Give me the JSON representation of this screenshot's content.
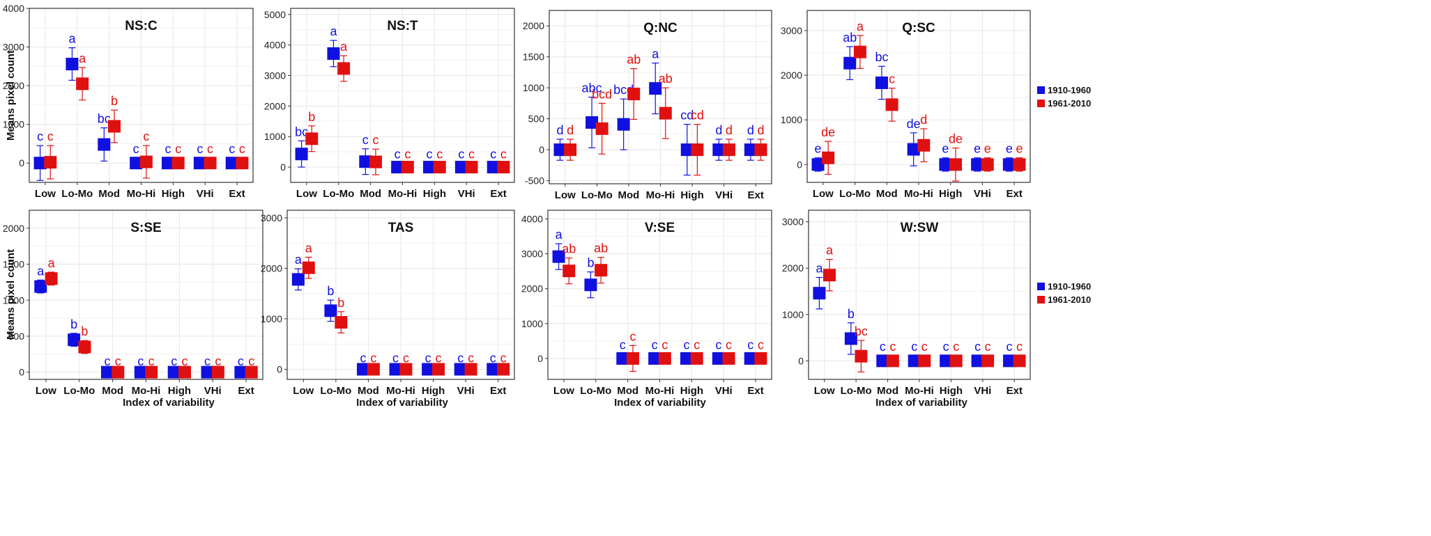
{
  "legend": [
    "1910-1960",
    "1961-2010"
  ],
  "colors": {
    "series1": "#1010e0",
    "series2": "#e01010",
    "grid": "#e6e6e6",
    "frame": "#333333"
  },
  "ylabel": "Means pixel count",
  "xlabel": "Index of variability",
  "chart_data": [
    {
      "type": "scatter",
      "title": "NS:C",
      "categories": [
        "Low",
        "Lo-Mo",
        "Mod",
        "Mo-Hi",
        "High",
        "VHi",
        "Ext"
      ],
      "ylim": [
        -500,
        4000
      ],
      "yticks": [
        0,
        1000,
        2000,
        3000,
        4000
      ],
      "series": [
        {
          "name": "1910-1960",
          "values": [
            0,
            2560,
            480,
            0,
            0,
            0,
            0
          ],
          "err": [
            450,
            420,
            430,
            130,
            130,
            130,
            130
          ],
          "letters": [
            "c",
            "a",
            "bc",
            "c",
            "c",
            "c",
            "c"
          ]
        },
        {
          "name": "1961-2010",
          "values": [
            20,
            2050,
            950,
            30,
            0,
            0,
            0
          ],
          "err": [
            430,
            420,
            420,
            420,
            130,
            130,
            130
          ],
          "letters": [
            "c",
            "a",
            "b",
            "c",
            "c",
            "c",
            "c"
          ]
        }
      ]
    },
    {
      "type": "scatter",
      "title": "NS:T",
      "categories": [
        "Low",
        "Lo-Mo",
        "Mod",
        "Mo-Hi",
        "High",
        "VHi",
        "Ext"
      ],
      "ylim": [
        -500,
        5200
      ],
      "yticks": [
        0,
        1000,
        2000,
        3000,
        4000,
        5000
      ],
      "series": [
        {
          "name": "1910-1960",
          "values": [
            430,
            3720,
            180,
            0,
            0,
            0,
            0
          ],
          "err": [
            430,
            430,
            420,
            130,
            130,
            130,
            130
          ],
          "letters": [
            "bc",
            "a",
            "c",
            "c",
            "c",
            "c",
            "c"
          ]
        },
        {
          "name": "1961-2010",
          "values": [
            930,
            3230,
            170,
            0,
            0,
            0,
            0
          ],
          "err": [
            420,
            420,
            420,
            130,
            130,
            130,
            130
          ],
          "letters": [
            "b",
            "a",
            "c",
            "c",
            "c",
            "c",
            "c"
          ]
        }
      ]
    },
    {
      "type": "scatter",
      "title": "Q:NC",
      "categories": [
        "Low",
        "Lo-Mo",
        "Mod",
        "Mo-Hi",
        "High",
        "VHi",
        "Ext"
      ],
      "ylim": [
        -550,
        2250
      ],
      "yticks": [
        -500,
        0,
        500,
        1000,
        1500,
        2000
      ],
      "series": [
        {
          "name": "1910-1960",
          "values": [
            0,
            440,
            410,
            990,
            0,
            0,
            0
          ],
          "err": [
            170,
            410,
            410,
            410,
            410,
            170,
            170
          ],
          "letters": [
            "d",
            "abc",
            "bcd",
            "a",
            "cd",
            "d",
            "d"
          ]
        },
        {
          "name": "1961-2010",
          "values": [
            0,
            340,
            900,
            590,
            0,
            0,
            0
          ],
          "err": [
            170,
            410,
            410,
            410,
            410,
            170,
            170
          ],
          "letters": [
            "d",
            "bcd",
            "ab",
            "ab",
            "cd",
            "d",
            "d"
          ]
        }
      ]
    },
    {
      "type": "scatter",
      "title": "Q:SC",
      "categories": [
        "Low",
        "Lo-Mo",
        "Mod",
        "Mo-Hi",
        "High",
        "VHi",
        "Ext"
      ],
      "ylim": [
        -400,
        3450
      ],
      "yticks": [
        0,
        1000,
        2000,
        3000
      ],
      "series": [
        {
          "name": "1910-1960",
          "values": [
            0,
            2270,
            1830,
            340,
            0,
            0,
            0
          ],
          "err": [
            150,
            370,
            370,
            370,
            150,
            150,
            150
          ],
          "letters": [
            "e",
            "ab",
            "bc",
            "de",
            "e",
            "e",
            "e"
          ]
        },
        {
          "name": "1961-2010",
          "values": [
            150,
            2520,
            1340,
            430,
            0,
            0,
            0
          ],
          "err": [
            370,
            370,
            370,
            370,
            370,
            150,
            150
          ],
          "letters": [
            "de",
            "a",
            "c",
            "d",
            "de",
            "e",
            "e"
          ]
        }
      ]
    },
    {
      "type": "scatter",
      "title": "S:SE",
      "categories": [
        "Low",
        "Lo-Mo",
        "Mod",
        "Mo-Hi",
        "High",
        "VHi",
        "Ext"
      ],
      "ylim": [
        -100,
        2250
      ],
      "yticks": [
        0,
        500,
        1000,
        1500,
        2000
      ],
      "series": [
        {
          "name": "1910-1960",
          "values": [
            1190,
            450,
            0,
            0,
            0,
            0,
            0
          ],
          "err": [
            90,
            90,
            25,
            25,
            25,
            25,
            25
          ],
          "letters": [
            "a",
            "b",
            "c",
            "c",
            "c",
            "c",
            "c"
          ]
        },
        {
          "name": "1961-2010",
          "values": [
            1300,
            350,
            0,
            0,
            0,
            0,
            0
          ],
          "err": [
            90,
            90,
            25,
            25,
            25,
            25,
            25
          ],
          "letters": [
            "a",
            "b",
            "c",
            "c",
            "c",
            "c",
            "c"
          ]
        }
      ]
    },
    {
      "type": "scatter",
      "title": "TAS",
      "categories": [
        "Low",
        "Lo-Mo",
        "Mod",
        "Mo-Hi",
        "High",
        "VHi",
        "Ext"
      ],
      "ylim": [
        -200,
        3150
      ],
      "yticks": [
        0,
        1000,
        2000,
        3000
      ],
      "series": [
        {
          "name": "1910-1960",
          "values": [
            1780,
            1160,
            0,
            0,
            0,
            0,
            0
          ],
          "err": [
            210,
            210,
            40,
            40,
            40,
            40,
            40
          ],
          "letters": [
            "a",
            "b",
            "c",
            "c",
            "c",
            "c",
            "c"
          ]
        },
        {
          "name": "1961-2010",
          "values": [
            2010,
            930,
            0,
            0,
            0,
            0,
            0
          ],
          "err": [
            210,
            210,
            40,
            40,
            40,
            40,
            40
          ],
          "letters": [
            "a",
            "b",
            "c",
            "c",
            "c",
            "c",
            "c"
          ]
        }
      ]
    },
    {
      "type": "scatter",
      "title": "V:SE",
      "categories": [
        "Low",
        "Lo-Mo",
        "Mod",
        "Mo-Hi",
        "High",
        "VHi",
        "Ext"
      ],
      "ylim": [
        -600,
        4250
      ],
      "yticks": [
        0,
        1000,
        2000,
        3000,
        4000
      ],
      "series": [
        {
          "name": "1910-1960",
          "values": [
            2920,
            2110,
            0,
            0,
            0,
            0,
            0
          ],
          "err": [
            370,
            370,
            130,
            130,
            130,
            130,
            130
          ],
          "letters": [
            "a",
            "b",
            "c",
            "c",
            "c",
            "c",
            "c"
          ]
        },
        {
          "name": "1961-2010",
          "values": [
            2510,
            2530,
            0,
            0,
            0,
            0,
            0
          ],
          "err": [
            370,
            370,
            370,
            130,
            130,
            130,
            130
          ],
          "letters": [
            "ab",
            "ab",
            "c",
            "c",
            "c",
            "c",
            "c"
          ]
        }
      ]
    },
    {
      "type": "scatter",
      "title": "W:SW",
      "categories": [
        "Low",
        "Lo-Mo",
        "Mod",
        "Mo-Hi",
        "High",
        "VHi",
        "Ext"
      ],
      "ylim": [
        -400,
        3250
      ],
      "yticks": [
        0,
        1000,
        2000,
        3000
      ],
      "series": [
        {
          "name": "1910-1960",
          "values": [
            1460,
            480,
            0,
            0,
            0,
            0,
            0
          ],
          "err": [
            340,
            340,
            110,
            110,
            110,
            110,
            110
          ],
          "letters": [
            "a",
            "b",
            "c",
            "c",
            "c",
            "c",
            "c"
          ]
        },
        {
          "name": "1961-2010",
          "values": [
            1850,
            100,
            0,
            0,
            0,
            0,
            0
          ],
          "err": [
            340,
            340,
            110,
            110,
            110,
            110,
            110
          ],
          "letters": [
            "a",
            "bc",
            "c",
            "c",
            "c",
            "c",
            "c"
          ]
        }
      ]
    }
  ]
}
